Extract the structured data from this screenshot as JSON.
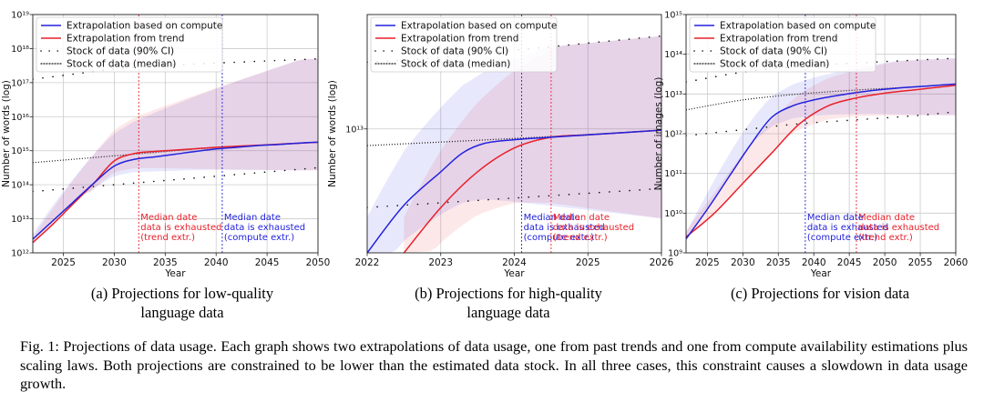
{
  "legend": {
    "compute": "Extrapolation based on compute",
    "trend": "Extrapolation from trend",
    "ci": "Stock of data (90% CI)",
    "median": "Stock of data (median)"
  },
  "colors": {
    "compute": "#2222dd",
    "trend": "#e8202a",
    "grid": "#cccccc"
  },
  "subcaptions": {
    "a": {
      "line1": "(a) Projections for low-quality",
      "line2": "language data"
    },
    "b": {
      "line1": "(b) Projections for high-quality",
      "line2": "language data"
    },
    "c": {
      "line1": "(c) Projections for vision data"
    }
  },
  "caption": "Fig. 1: Projections of data usage. Each graph shows two extrapolations of data usage, one from past trends and one from compute availability estimations plus scaling laws. Both projections are constrained to be lower than the estimated data stock. In all three cases, this constraint causes a slowdown in data usage growth.",
  "chart_data": [
    {
      "type": "line",
      "title": "",
      "xlabel": "Year",
      "ylabel": "Number of words (log)",
      "xlim": [
        2022,
        2050
      ],
      "ylim_log10": [
        12,
        19
      ],
      "x_ticks": [
        2025,
        2030,
        2035,
        2040,
        2045,
        2050
      ],
      "y_ticks": [
        12,
        13,
        14,
        15,
        16,
        17,
        18,
        19
      ],
      "annotations": [
        {
          "series": "trend",
          "x": 2032.4,
          "lines": [
            "Median date",
            "data is exhausted",
            "(trend extr.)"
          ]
        },
        {
          "series": "compute",
          "x": 2040.6,
          "lines": [
            "Median date",
            "data is exhausted",
            "(compute extr.)"
          ]
        }
      ],
      "series": [
        {
          "name": "Extrapolation based on compute",
          "key": "compute",
          "x": [
            2022,
            2024,
            2026,
            2028,
            2030,
            2032,
            2034,
            2036,
            2038,
            2040,
            2042,
            2044,
            2046,
            2048,
            2050
          ],
          "y_log10": [
            12.4,
            12.95,
            13.5,
            14.05,
            14.55,
            14.75,
            14.82,
            14.9,
            14.98,
            15.05,
            15.1,
            15.15,
            15.18,
            15.22,
            15.25
          ]
        },
        {
          "name": "Extrapolation from trend",
          "key": "trend",
          "x": [
            2022,
            2024,
            2026,
            2028,
            2030,
            2032,
            2034,
            2036,
            2038,
            2040,
            2042,
            2044,
            2046,
            2048,
            2050
          ],
          "y_log10": [
            12.3,
            12.85,
            13.45,
            14.05,
            14.7,
            14.92,
            14.98,
            15.02,
            15.06,
            15.1,
            15.13,
            15.16,
            15.19,
            15.22,
            15.25
          ]
        },
        {
          "name": "Stock of data (median)",
          "key": "median",
          "x": [
            2022,
            2026,
            2030,
            2034,
            2038,
            2042,
            2046,
            2050
          ],
          "y_log10": [
            14.65,
            14.75,
            14.85,
            14.95,
            15.05,
            15.12,
            15.18,
            15.25
          ]
        },
        {
          "name": "Stock of data (90% CI) upper",
          "key": "ci",
          "x": [
            2022,
            2026,
            2030,
            2034,
            2038,
            2042,
            2046,
            2050
          ],
          "y_log10": [
            17.1,
            17.25,
            17.4,
            17.5,
            17.55,
            17.6,
            17.65,
            17.7
          ]
        },
        {
          "name": "Stock of data (90% CI) lower",
          "key": "ci",
          "x": [
            2022,
            2026,
            2030,
            2034,
            2038,
            2042,
            2046,
            2050
          ],
          "y_log10": [
            13.8,
            13.9,
            14.0,
            14.1,
            14.2,
            14.3,
            14.4,
            14.5
          ]
        }
      ]
    },
    {
      "type": "line",
      "title": "",
      "xlabel": "Year",
      "ylabel": "Number of words (log)",
      "xlim": [
        2022,
        2026
      ],
      "ylim_log10": [
        12.48,
        13.48
      ],
      "x_ticks": [
        2022,
        2023,
        2024,
        2025,
        2026
      ],
      "y_ticks": [
        13
      ],
      "annotations": [
        {
          "series": "compute",
          "x": 2024.1,
          "lines": [
            "Median date",
            "data is exhausted",
            "(compute extr.)"
          ]
        },
        {
          "series": "trend",
          "x": 2024.5,
          "lines": [
            "Median date",
            "data is exhausted",
            "(trend extr.)"
          ]
        }
      ],
      "series": [
        {
          "name": "Extrapolation based on compute",
          "key": "compute",
          "x": [
            2022,
            2022.5,
            2023,
            2023.3,
            2023.6,
            2024,
            2024.5,
            2025,
            2025.5,
            2026
          ],
          "y_log10": [
            12.48,
            12.68,
            12.82,
            12.9,
            12.94,
            12.955,
            12.965,
            12.975,
            12.985,
            12.995
          ]
        },
        {
          "name": "Extrapolation from trend",
          "key": "trend",
          "x": [
            2022.5,
            2023,
            2023.5,
            2024,
            2024.5,
            2025,
            2025.5,
            2026
          ],
          "y_log10": [
            12.48,
            12.67,
            12.82,
            12.92,
            12.965,
            12.975,
            12.985,
            12.995
          ]
        },
        {
          "name": "Stock of data (median)",
          "key": "median",
          "x": [
            2022,
            2023,
            2024,
            2025,
            2026
          ],
          "y_log10": [
            12.93,
            12.945,
            12.96,
            12.977,
            12.995
          ]
        },
        {
          "name": "Stock of data (90% CI) upper",
          "key": "ci",
          "x": [
            2022,
            2023,
            2024,
            2025,
            2026
          ],
          "y_log10": [
            13.28,
            13.3,
            13.33,
            13.36,
            13.39
          ]
        },
        {
          "name": "Stock of data (90% CI) lower",
          "key": "ci",
          "x": [
            2022,
            2023,
            2024,
            2025,
            2026
          ],
          "y_log10": [
            12.67,
            12.69,
            12.71,
            12.73,
            12.75
          ]
        }
      ]
    },
    {
      "type": "line",
      "title": "",
      "xlabel": "Year",
      "ylabel": "Number of images (log)",
      "xlim": [
        2022,
        2060
      ],
      "ylim_log10": [
        9,
        15
      ],
      "x_ticks": [
        2025,
        2030,
        2035,
        2040,
        2045,
        2050,
        2055,
        2060
      ],
      "y_ticks": [
        9,
        10,
        11,
        12,
        13,
        14,
        15
      ],
      "annotations": [
        {
          "series": "compute",
          "x": 2038.8,
          "lines": [
            "Median date",
            "data is exhausted",
            "(compute extr.)"
          ]
        },
        {
          "series": "trend",
          "x": 2046.0,
          "lines": [
            "Median date",
            "data is exhausted",
            "(trend extr.)"
          ]
        }
      ],
      "series": [
        {
          "name": "Extrapolation based on compute",
          "key": "compute",
          "x": [
            2022,
            2025,
            2028,
            2031,
            2034,
            2037,
            2040,
            2044,
            2048,
            2052,
            2056,
            2060
          ],
          "y_log10": [
            9.35,
            10.1,
            10.9,
            11.7,
            12.4,
            12.7,
            12.85,
            12.98,
            13.08,
            13.15,
            13.2,
            13.25
          ]
        },
        {
          "name": "Extrapolation from trend",
          "key": "trend",
          "x": [
            2022,
            2026,
            2030,
            2034,
            2038,
            2042,
            2046,
            2050,
            2054,
            2058,
            2060
          ],
          "y_log10": [
            9.4,
            10.0,
            10.75,
            11.5,
            12.25,
            12.7,
            12.9,
            13.02,
            13.1,
            13.18,
            13.22
          ]
        },
        {
          "name": "Stock of data (median)",
          "key": "median",
          "x": [
            2022,
            2030,
            2038,
            2046,
            2054,
            2060
          ],
          "y_log10": [
            12.6,
            12.85,
            13.0,
            13.1,
            13.18,
            13.25
          ]
        },
        {
          "name": "Stock of data (90% CI) upper",
          "key": "ci",
          "x": [
            2022,
            2030,
            2038,
            2046,
            2054,
            2060
          ],
          "y_log10": [
            13.3,
            13.55,
            13.7,
            13.78,
            13.85,
            13.9
          ]
        },
        {
          "name": "Stock of data (90% CI) lower",
          "key": "ci",
          "x": [
            2022,
            2030,
            2038,
            2046,
            2054,
            2060
          ],
          "y_log10": [
            11.95,
            12.1,
            12.25,
            12.35,
            12.45,
            12.55
          ]
        }
      ]
    }
  ]
}
